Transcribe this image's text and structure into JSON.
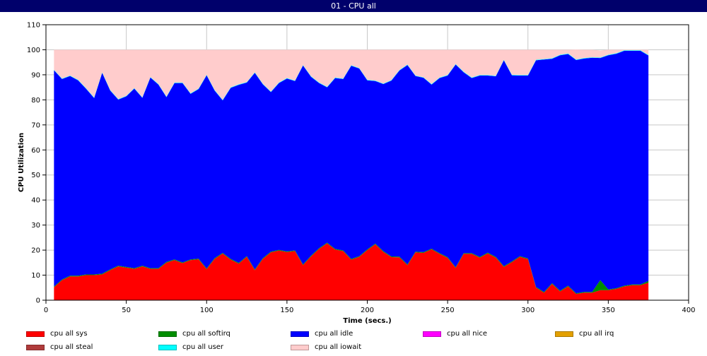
{
  "window": {
    "title": "01 - CPU all"
  },
  "chart_data": {
    "type": "area",
    "stacked": true,
    "title": "",
    "xlabel": "Time (secs.)",
    "ylabel": "CPU Utilization",
    "xlim": [
      0,
      400
    ],
    "ylim": [
      0,
      110
    ],
    "xticks": [
      0,
      50,
      100,
      150,
      200,
      250,
      300,
      350,
      400
    ],
    "yticks": [
      0,
      10,
      20,
      30,
      40,
      50,
      60,
      70,
      80,
      90,
      100,
      110
    ],
    "grid": true,
    "legend_position": "bottom",
    "x": [
      5,
      10,
      15,
      20,
      25,
      30,
      35,
      40,
      45,
      50,
      55,
      60,
      65,
      70,
      75,
      80,
      85,
      90,
      95,
      100,
      105,
      110,
      115,
      120,
      125,
      130,
      135,
      140,
      145,
      150,
      155,
      160,
      165,
      170,
      175,
      180,
      185,
      190,
      195,
      200,
      205,
      210,
      215,
      220,
      225,
      230,
      235,
      240,
      245,
      250,
      255,
      260,
      265,
      270,
      275,
      280,
      285,
      290,
      295,
      300,
      305,
      310,
      315,
      320,
      325,
      330,
      335,
      340,
      345,
      350,
      355,
      360,
      365,
      370,
      375
    ],
    "series": [
      {
        "name": "cpu all sys",
        "color": "#ff0000",
        "values": [
          5.2,
          8.0,
          9.5,
          9.5,
          10.0,
          10.0,
          10.3,
          12.0,
          13.5,
          13.0,
          12.5,
          13.5,
          12.5,
          12.5,
          15.0,
          16.0,
          14.8,
          16.0,
          16.3,
          12.4,
          16.5,
          18.6,
          16.2,
          14.6,
          17.3,
          12.0,
          16.5,
          19.1,
          19.8,
          19.2,
          19.6,
          14.0,
          17.5,
          20.5,
          22.7,
          20.2,
          19.6,
          16.2,
          17.3,
          20.0,
          22.3,
          19.3,
          17.2,
          17.1,
          14.0,
          19.1,
          18.9,
          20.3,
          18.5,
          16.9,
          12.9,
          18.5,
          18.5,
          17.0,
          18.7,
          17.0,
          13.3,
          15.2,
          17.3,
          16.4,
          5.0,
          3.0,
          6.5,
          3.5,
          5.5,
          2.5,
          3.0,
          3.0,
          4.0,
          4.0,
          4.5,
          5.5,
          6.0,
          6.0,
          7.0
        ]
      },
      {
        "name": "cpu all softirq",
        "color": "#008e00",
        "values": [
          0.3,
          0.3,
          0.3,
          0.3,
          0.3,
          0.3,
          0.3,
          0.3,
          0.3,
          0.3,
          0.3,
          0.3,
          0.3,
          0.3,
          0.3,
          0.3,
          0.3,
          0.3,
          0.3,
          0.3,
          0.3,
          0.3,
          0.3,
          0.3,
          0.3,
          0.3,
          0.3,
          0.3,
          0.3,
          0.3,
          0.3,
          0.3,
          0.3,
          0.3,
          0.3,
          0.3,
          0.3,
          0.3,
          0.3,
          0.3,
          0.3,
          0.3,
          0.3,
          0.3,
          0.3,
          0.3,
          0.3,
          0.3,
          0.3,
          0.3,
          0.3,
          0.3,
          0.3,
          0.3,
          0.3,
          0.3,
          0.3,
          0.3,
          0.3,
          0.3,
          0.3,
          0.3,
          0.3,
          0.3,
          0.3,
          0.3,
          0.3,
          0.3,
          4.0,
          0.3,
          0.3,
          0.3,
          0.3,
          0.3,
          0.7
        ]
      },
      {
        "name": "cpu all idle",
        "color": "#0000ff",
        "values": [
          86.3,
          80.0,
          79.7,
          78.0,
          74.1,
          70.4,
          80.2,
          71.4,
          66.3,
          68.1,
          71.7,
          67.0,
          76.1,
          73.3,
          65.8,
          70.4,
          71.6,
          66.1,
          67.7,
          77.1,
          66.9,
          60.9,
          68.3,
          71.1,
          69.3,
          78.5,
          69.4,
          63.7,
          66.6,
          69.0,
          67.6,
          79.4,
          71.4,
          65.9,
          62.0,
          68.2,
          68.4,
          77.1,
          74.9,
          67.5,
          64.9,
          66.7,
          70.2,
          74.3,
          79.6,
          70.1,
          69.6,
          65.5,
          69.9,
          72.5,
          80.9,
          72.2,
          69.9,
          72.4,
          70.7,
          72.1,
          82.2,
          74.3,
          72.1,
          73.0,
          90.5,
          92.8,
          89.6,
          94.0,
          92.5,
          93.1,
          93.2,
          93.5,
          88.7,
          93.5,
          93.6,
          93.8,
          93.3,
          93.3,
          90.0
        ]
      },
      {
        "name": "cpu all nice",
        "color": "#ff00ff",
        "values": [
          0,
          0,
          0,
          0,
          0,
          0,
          0,
          0,
          0,
          0,
          0,
          0,
          0,
          0,
          0,
          0,
          0,
          0,
          0,
          0,
          0,
          0,
          0,
          0,
          0,
          0,
          0,
          0,
          0,
          0,
          0,
          0,
          0,
          0,
          0,
          0,
          0,
          0,
          0,
          0,
          0,
          0,
          0,
          0,
          0,
          0,
          0,
          0,
          0,
          0,
          0,
          0,
          0,
          0,
          0,
          0,
          0,
          0,
          0,
          0,
          0,
          0,
          0,
          0,
          0,
          0,
          0,
          0,
          0,
          0,
          0,
          0,
          0,
          0,
          0
        ]
      },
      {
        "name": "cpu all irq",
        "color": "#e3a000",
        "values": [
          0,
          0,
          0,
          0,
          0,
          0,
          0,
          0,
          0,
          0,
          0,
          0,
          0,
          0,
          0,
          0,
          0,
          0,
          0,
          0,
          0,
          0,
          0,
          0,
          0,
          0,
          0,
          0,
          0,
          0,
          0,
          0,
          0,
          0,
          0,
          0,
          0,
          0,
          0,
          0,
          0,
          0,
          0,
          0,
          0,
          0,
          0,
          0,
          0,
          0,
          0,
          0,
          0,
          0,
          0,
          0,
          0,
          0,
          0,
          0,
          0,
          0,
          0,
          0,
          0,
          0,
          0,
          0,
          0,
          0,
          0,
          0,
          0,
          0,
          0
        ]
      },
      {
        "name": "cpu all steal",
        "color": "#b03b3b",
        "values": [
          0,
          0,
          0,
          0,
          0,
          0,
          0,
          0,
          0,
          0,
          0,
          0,
          0,
          0,
          0,
          0,
          0,
          0,
          0,
          0,
          0,
          0,
          0,
          0,
          0,
          0,
          0,
          0,
          0,
          0,
          0,
          0,
          0,
          0,
          0,
          0,
          0,
          0,
          0,
          0,
          0,
          0,
          0,
          0,
          0,
          0,
          0,
          0,
          0,
          0,
          0,
          0,
          0,
          0,
          0,
          0,
          0,
          0,
          0,
          0,
          0,
          0,
          0,
          0,
          0,
          0,
          0,
          0,
          0,
          0,
          0,
          0,
          0,
          0,
          0
        ]
      },
      {
        "name": "cpu all user",
        "color": "#00ffff",
        "values": [
          0.2,
          0.2,
          0.2,
          0.2,
          0.2,
          0.2,
          0.2,
          0.2,
          0.2,
          0.2,
          0.2,
          0.2,
          0.2,
          0.2,
          0.2,
          0.2,
          0.2,
          0.2,
          0.2,
          0.2,
          0.2,
          0.2,
          0.2,
          0.2,
          0.2,
          0.2,
          0.2,
          0.2,
          0.2,
          0.2,
          0.2,
          0.2,
          0.2,
          0.2,
          0.2,
          0.2,
          0.2,
          0.2,
          0.2,
          0.2,
          0.2,
          0.2,
          0.2,
          0.2,
          0.2,
          0.2,
          0.2,
          0.2,
          0.2,
          0.2,
          0.2,
          0.2,
          0.2,
          0.2,
          0.2,
          0.2,
          0.2,
          0.2,
          0.2,
          0.2,
          0.2,
          0.2,
          0.2,
          0.2,
          0.2,
          0.2,
          0.2,
          0.2,
          0.2,
          0.2,
          0.2,
          0.2,
          0.2,
          0.2,
          0.2
        ]
      },
      {
        "name": "cpu all iowait",
        "color": "#ffcccc",
        "values": [
          8.0,
          11.5,
          10.3,
          12.0,
          15.4,
          19.1,
          9.0,
          16.1,
          19.7,
          18.4,
          15.3,
          19.0,
          10.9,
          13.7,
          18.7,
          13.1,
          13.1,
          17.4,
          15.5,
          10.0,
          16.1,
          20.0,
          15.0,
          13.8,
          12.9,
          9.0,
          13.6,
          16.7,
          13.1,
          11.3,
          12.3,
          6.1,
          10.6,
          13.1,
          14.8,
          11.1,
          11.5,
          6.2,
          7.3,
          12.0,
          12.3,
          13.5,
          12.1,
          8.1,
          5.9,
          10.3,
          11.0,
          13.7,
          11.1,
          10.1,
          5.7,
          8.8,
          11.1,
          10.1,
          10.1,
          10.4,
          4.0,
          10.0,
          10.1,
          10.1,
          4.0,
          3.7,
          3.4,
          2.0,
          1.5,
          4.0,
          3.3,
          3.0,
          2.8,
          2.0,
          1.4,
          0.2,
          0.2,
          0.2,
          2.1
        ]
      }
    ]
  }
}
